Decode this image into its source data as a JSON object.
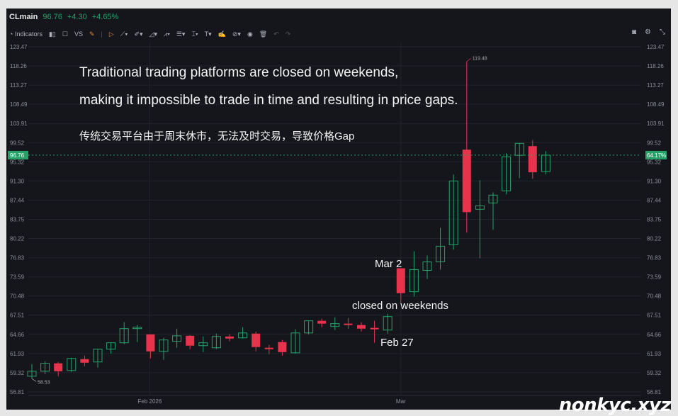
{
  "header": {
    "symbol": "CLmain",
    "price": "96.76",
    "change": "+4.30",
    "change_pct": "+4.65%"
  },
  "toolbar": {
    "indicators": "Indicators",
    "vs": "VS",
    "icons": [
      "indicators-icon",
      "candle-type-icon",
      "rectangle-icon",
      "compare-icon",
      "brush-icon",
      "cursor-icon",
      "trend-line-icon",
      "pen-icon",
      "triangle-icon",
      "pattern-icon",
      "fib-icon",
      "measure-icon",
      "text-icon",
      "signature-icon",
      "shapes-icon",
      "eye-icon",
      "trash-icon",
      "undo-icon",
      "redo-icon"
    ],
    "right_icons": [
      "camera-icon",
      "gear-icon",
      "fullscreen-icon"
    ]
  },
  "colors": {
    "up": "#26a269",
    "down": "#e8334d",
    "bg": "#15161c",
    "grid": "#22242c",
    "axis_text": "#8d9099"
  },
  "annotations": {
    "line1": "Traditional trading platforms are closed on weekends,",
    "line2": "making it impossible to trade in time and resulting in price gaps.",
    "line3": "传统交易平台由于周末休市，无法及时交易，导致价格Gap",
    "mar2": "Mar 2",
    "closed": "closed on weekends",
    "feb27": "Feb 27"
  },
  "watermark": "nonkyc.xyz",
  "chart_data": {
    "type": "candlestick",
    "y_scale": "log",
    "ylim": [
      56.81,
      123.47
    ],
    "y_ticks": [
      "123.47",
      "118.26",
      "113.27",
      "108.49",
      "103.91",
      "99.52",
      "95.32",
      "91.30",
      "87.44",
      "83.75",
      "80.22",
      "76.83",
      "73.59",
      "70.48",
      "67.51",
      "64.66",
      "61.93",
      "59.32",
      "56.81"
    ],
    "x_ticks": [
      {
        "label": "Feb 2026",
        "index": 9
      },
      {
        "label": "Mar",
        "index": 28
      }
    ],
    "last_price": "96.76",
    "last_price_pct": "64.17%",
    "max_label": "119.48",
    "min_label": "58.53",
    "grid": true,
    "ohlc": [
      [
        58.85,
        60.48,
        58.53,
        59.51
      ],
      [
        59.51,
        60.87,
        59.13,
        60.58
      ],
      [
        60.58,
        60.77,
        58.85,
        59.51
      ],
      [
        59.61,
        61.35,
        59.42,
        61.25
      ],
      [
        61.16,
        61.64,
        60.19,
        60.67
      ],
      [
        60.77,
        62.54,
        60.0,
        62.54
      ],
      [
        62.54,
        63.45,
        61.93,
        63.45
      ],
      [
        63.45,
        66.45,
        63.24,
        65.5
      ],
      [
        65.5,
        66.03,
        63.55,
        65.71
      ],
      [
        64.66,
        64.66,
        61.25,
        62.23
      ],
      [
        62.23,
        64.16,
        61.06,
        63.85
      ],
      [
        63.65,
        65.5,
        62.74,
        64.45
      ],
      [
        64.45,
        64.56,
        62.54,
        63.04
      ],
      [
        63.04,
        64.35,
        62.13,
        63.45
      ],
      [
        62.74,
        64.77,
        62.54,
        64.35
      ],
      [
        64.35,
        64.66,
        63.65,
        64.05
      ],
      [
        64.16,
        65.71,
        64.05,
        64.87
      ],
      [
        64.77,
        65.08,
        62.23,
        62.84
      ],
      [
        62.74,
        63.14,
        61.83,
        62.54
      ],
      [
        63.55,
        63.85,
        61.64,
        62.13
      ],
      [
        62.03,
        65.4,
        61.93,
        64.87
      ],
      [
        64.87,
        66.66,
        64.66,
        66.66
      ],
      [
        66.66,
        66.98,
        65.71,
        66.24
      ],
      [
        65.82,
        67.19,
        65.29,
        66.24
      ],
      [
        66.24,
        67.09,
        65.5,
        66.03
      ],
      [
        66.03,
        66.45,
        65.08,
        65.5
      ],
      [
        65.61,
        66.66,
        63.45,
        65.4
      ],
      [
        65.29,
        67.73,
        64.77,
        67.3
      ],
      [
        75.03,
        75.03,
        69.27,
        70.94
      ],
      [
        71.17,
        77.96,
        70.37,
        74.79
      ],
      [
        74.67,
        77.21,
        73.24,
        76.11
      ],
      [
        76.11,
        82.18,
        74.79,
        78.84
      ],
      [
        79.09,
        92.64,
        78.21,
        91.3
      ],
      [
        97.97,
        119.48,
        81.28,
        85.12
      ],
      [
        85.67,
        91.45,
        76.71,
        86.35
      ],
      [
        86.89,
        89.01,
        81.8,
        88.44
      ],
      [
        89.3,
        97.19,
        88.58,
        96.41
      ],
      [
        96.72,
        99.36,
        91.9,
        99.36
      ],
      [
        98.74,
        100.07,
        91.75,
        93.11
      ],
      [
        93.26,
        97.66,
        92.67,
        96.76
      ]
    ]
  }
}
